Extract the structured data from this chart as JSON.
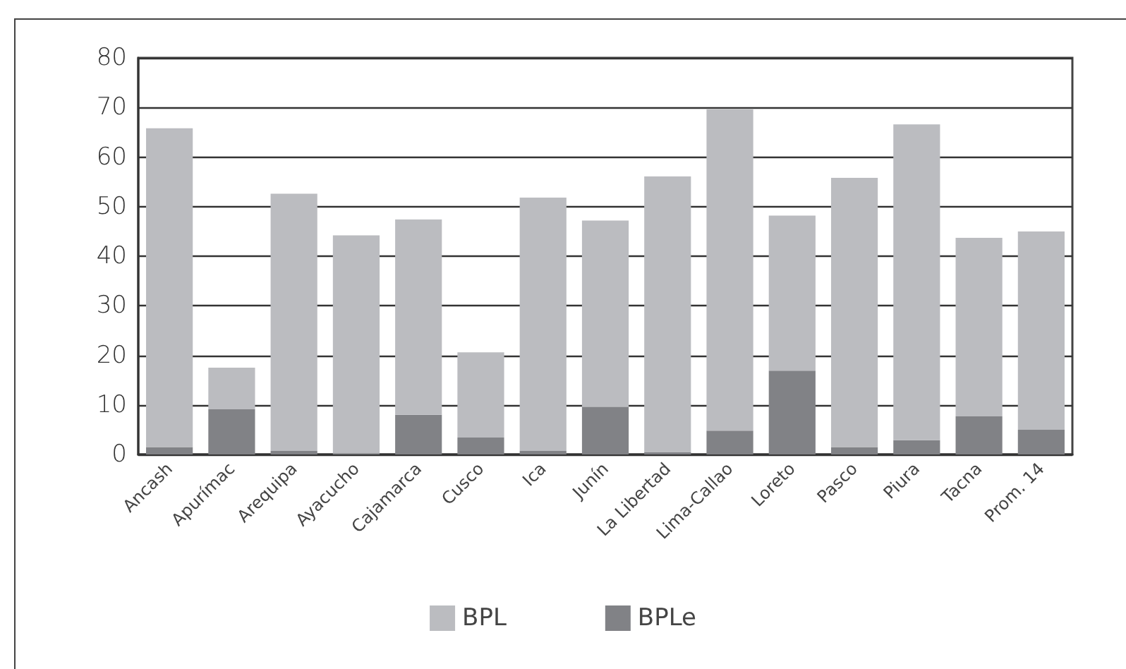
{
  "chart_data": {
    "type": "bar",
    "stacked": true,
    "categories": [
      "Ancash",
      "Apurímac",
      "Arequipa",
      "Ayacucho",
      "Cajamarca",
      "Cusco",
      "Ica",
      "Junín",
      "La Libertad",
      "Lima-Callao",
      "Loreto",
      "Pasco",
      "Piura",
      "Tacna",
      "Prom. 14"
    ],
    "series": [
      {
        "name": "BPLe",
        "color": "#818286",
        "values": [
          1.5,
          9.1,
          0.7,
          0.2,
          8.0,
          3.4,
          0.7,
          9.6,
          0.5,
          4.8,
          16.9,
          1.5,
          2.9,
          7.7,
          5.0
        ]
      },
      {
        "name": "BPL",
        "color": "#bbbcc0",
        "values": [
          64.3,
          8.4,
          51.9,
          44.0,
          39.4,
          17.2,
          51.1,
          37.6,
          55.6,
          64.8,
          31.3,
          54.3,
          63.7,
          36.0,
          40.0
        ]
      }
    ],
    "ylim": [
      0,
      80
    ],
    "yticks": [
      0,
      10,
      20,
      30,
      40,
      50,
      60,
      70,
      80
    ],
    "grid": "y",
    "legend": "bottom"
  }
}
